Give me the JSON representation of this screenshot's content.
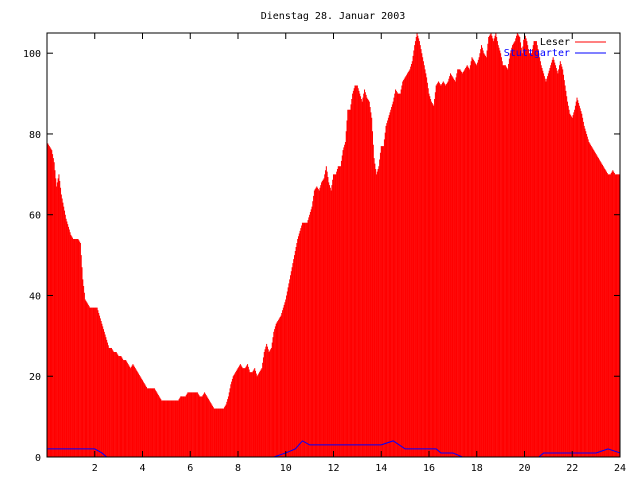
{
  "chart_data": {
    "type": "bar",
    "title": "Dienstag 28. Januar 2003",
    "xlabel": "",
    "ylabel": "",
    "xlim": [
      0,
      24
    ],
    "ylim": [
      0,
      105
    ],
    "x_ticks": [
      2,
      4,
      6,
      8,
      10,
      12,
      14,
      16,
      18,
      20,
      22,
      24
    ],
    "y_ticks": [
      0,
      20,
      40,
      60,
      80,
      100
    ],
    "legend_position": "top-right",
    "grid": false,
    "series": [
      {
        "name": "Leser",
        "style": "impulses",
        "color": "#ff0000",
        "points": [
          [
            0.0,
            78
          ],
          [
            0.1,
            77
          ],
          [
            0.2,
            76
          ],
          [
            0.3,
            73
          ],
          [
            0.4,
            67
          ],
          [
            0.5,
            70
          ],
          [
            0.6,
            65
          ],
          [
            0.7,
            62
          ],
          [
            0.8,
            59
          ],
          [
            0.9,
            57
          ],
          [
            1.0,
            55
          ],
          [
            1.1,
            54
          ],
          [
            1.2,
            54
          ],
          [
            1.3,
            54
          ],
          [
            1.4,
            53
          ],
          [
            1.5,
            44
          ],
          [
            1.6,
            39
          ],
          [
            1.7,
            38
          ],
          [
            1.8,
            37
          ],
          [
            1.9,
            37
          ],
          [
            2.0,
            37
          ],
          [
            2.1,
            37
          ],
          [
            2.2,
            35
          ],
          [
            2.3,
            33
          ],
          [
            2.4,
            31
          ],
          [
            2.5,
            29
          ],
          [
            2.6,
            27
          ],
          [
            2.7,
            27
          ],
          [
            2.8,
            26
          ],
          [
            2.9,
            26
          ],
          [
            3.0,
            25
          ],
          [
            3.1,
            25
          ],
          [
            3.2,
            24
          ],
          [
            3.3,
            24
          ],
          [
            3.4,
            23
          ],
          [
            3.5,
            22
          ],
          [
            3.6,
            23
          ],
          [
            3.7,
            22
          ],
          [
            3.8,
            21
          ],
          [
            3.9,
            20
          ],
          [
            4.0,
            19
          ],
          [
            4.1,
            18
          ],
          [
            4.2,
            17
          ],
          [
            4.3,
            17
          ],
          [
            4.4,
            17
          ],
          [
            4.5,
            17
          ],
          [
            4.6,
            16
          ],
          [
            4.7,
            15
          ],
          [
            4.8,
            14
          ],
          [
            4.9,
            14
          ],
          [
            5.0,
            14
          ],
          [
            5.1,
            14
          ],
          [
            5.2,
            14
          ],
          [
            5.3,
            14
          ],
          [
            5.4,
            14
          ],
          [
            5.5,
            14
          ],
          [
            5.6,
            15
          ],
          [
            5.7,
            15
          ],
          [
            5.8,
            15
          ],
          [
            5.9,
            16
          ],
          [
            6.0,
            16
          ],
          [
            6.1,
            16
          ],
          [
            6.2,
            16
          ],
          [
            6.3,
            16
          ],
          [
            6.4,
            15
          ],
          [
            6.5,
            15
          ],
          [
            6.6,
            16
          ],
          [
            6.7,
            15
          ],
          [
            6.8,
            14
          ],
          [
            6.9,
            13
          ],
          [
            7.0,
            12
          ],
          [
            7.1,
            12
          ],
          [
            7.2,
            12
          ],
          [
            7.3,
            12
          ],
          [
            7.4,
            12
          ],
          [
            7.5,
            13
          ],
          [
            7.6,
            15
          ],
          [
            7.7,
            18
          ],
          [
            7.8,
            20
          ],
          [
            7.9,
            21
          ],
          [
            8.0,
            22
          ],
          [
            8.1,
            23
          ],
          [
            8.2,
            22
          ],
          [
            8.3,
            22
          ],
          [
            8.4,
            23
          ],
          [
            8.5,
            21
          ],
          [
            8.6,
            21
          ],
          [
            8.7,
            22
          ],
          [
            8.8,
            20
          ],
          [
            8.9,
            21
          ],
          [
            9.0,
            22
          ],
          [
            9.1,
            26
          ],
          [
            9.2,
            28
          ],
          [
            9.3,
            26
          ],
          [
            9.4,
            27
          ],
          [
            9.5,
            31
          ],
          [
            9.6,
            33
          ],
          [
            9.7,
            34
          ],
          [
            9.8,
            35
          ],
          [
            9.9,
            37
          ],
          [
            10.0,
            39
          ],
          [
            10.1,
            42
          ],
          [
            10.2,
            45
          ],
          [
            10.3,
            48
          ],
          [
            10.4,
            51
          ],
          [
            10.5,
            54
          ],
          [
            10.6,
            56
          ],
          [
            10.7,
            58
          ],
          [
            10.8,
            58
          ],
          [
            10.9,
            58
          ],
          [
            11.0,
            60
          ],
          [
            11.1,
            62
          ],
          [
            11.2,
            66
          ],
          [
            11.3,
            67
          ],
          [
            11.4,
            66
          ],
          [
            11.5,
            68
          ],
          [
            11.6,
            69
          ],
          [
            11.7,
            72
          ],
          [
            11.8,
            68
          ],
          [
            11.9,
            66
          ],
          [
            12.0,
            70
          ],
          [
            12.1,
            70
          ],
          [
            12.2,
            72
          ],
          [
            12.3,
            72
          ],
          [
            12.4,
            76
          ],
          [
            12.5,
            78
          ],
          [
            12.6,
            86
          ],
          [
            12.7,
            86
          ],
          [
            12.8,
            90
          ],
          [
            12.9,
            92
          ],
          [
            13.0,
            92
          ],
          [
            13.1,
            90
          ],
          [
            13.2,
            88
          ],
          [
            13.3,
            91
          ],
          [
            13.4,
            89
          ],
          [
            13.5,
            88
          ],
          [
            13.6,
            84
          ],
          [
            13.7,
            74
          ],
          [
            13.8,
            70
          ],
          [
            13.9,
            72
          ],
          [
            14.0,
            77
          ],
          [
            14.1,
            77
          ],
          [
            14.2,
            82
          ],
          [
            14.3,
            84
          ],
          [
            14.4,
            86
          ],
          [
            14.5,
            88
          ],
          [
            14.6,
            91
          ],
          [
            14.7,
            90
          ],
          [
            14.8,
            90
          ],
          [
            14.9,
            93
          ],
          [
            15.0,
            94
          ],
          [
            15.1,
            95
          ],
          [
            15.2,
            96
          ],
          [
            15.3,
            98
          ],
          [
            15.4,
            102
          ],
          [
            15.5,
            105
          ],
          [
            15.6,
            103
          ],
          [
            15.7,
            100
          ],
          [
            15.8,
            97
          ],
          [
            15.9,
            94
          ],
          [
            16.0,
            90
          ],
          [
            16.1,
            88
          ],
          [
            16.2,
            87
          ],
          [
            16.3,
            92
          ],
          [
            16.4,
            93
          ],
          [
            16.5,
            92
          ],
          [
            16.6,
            93
          ],
          [
            16.7,
            92
          ],
          [
            16.8,
            93
          ],
          [
            16.9,
            95
          ],
          [
            17.0,
            94
          ],
          [
            17.1,
            93
          ],
          [
            17.2,
            96
          ],
          [
            17.3,
            96
          ],
          [
            17.4,
            95
          ],
          [
            17.5,
            96
          ],
          [
            17.6,
            97
          ],
          [
            17.7,
            96
          ],
          [
            17.8,
            99
          ],
          [
            17.9,
            98
          ],
          [
            18.0,
            97
          ],
          [
            18.1,
            99
          ],
          [
            18.2,
            102
          ],
          [
            18.3,
            100
          ],
          [
            18.4,
            99
          ],
          [
            18.5,
            104
          ],
          [
            18.6,
            105
          ],
          [
            18.7,
            103
          ],
          [
            18.8,
            105
          ],
          [
            18.9,
            102
          ],
          [
            19.0,
            100
          ],
          [
            19.1,
            97
          ],
          [
            19.2,
            97
          ],
          [
            19.3,
            96
          ],
          [
            19.4,
            100
          ],
          [
            19.5,
            102
          ],
          [
            19.6,
            103
          ],
          [
            19.7,
            105
          ],
          [
            19.8,
            104
          ],
          [
            19.9,
            100
          ],
          [
            20.0,
            105
          ],
          [
            20.1,
            103
          ],
          [
            20.2,
            100
          ],
          [
            20.3,
            100
          ],
          [
            20.4,
            103
          ],
          [
            20.5,
            103
          ],
          [
            20.6,
            100
          ],
          [
            20.7,
            97
          ],
          [
            20.8,
            95
          ],
          [
            20.9,
            93
          ],
          [
            21.0,
            95
          ],
          [
            21.1,
            97
          ],
          [
            21.2,
            99
          ],
          [
            21.3,
            97
          ],
          [
            21.4,
            95
          ],
          [
            21.5,
            98
          ],
          [
            21.6,
            96
          ],
          [
            21.7,
            92
          ],
          [
            21.8,
            88
          ],
          [
            21.9,
            85
          ],
          [
            22.0,
            84
          ],
          [
            22.1,
            86
          ],
          [
            22.2,
            89
          ],
          [
            22.3,
            87
          ],
          [
            22.4,
            85
          ],
          [
            22.5,
            82
          ],
          [
            22.6,
            80
          ],
          [
            22.7,
            78
          ],
          [
            22.8,
            77
          ],
          [
            22.9,
            76
          ],
          [
            23.0,
            75
          ],
          [
            23.1,
            74
          ],
          [
            23.2,
            73
          ],
          [
            23.3,
            72
          ],
          [
            23.4,
            71
          ],
          [
            23.5,
            70
          ],
          [
            23.6,
            70
          ],
          [
            23.7,
            71
          ],
          [
            23.8,
            70
          ],
          [
            23.9,
            70
          ]
        ]
      },
      {
        "name": "Stuttgarter",
        "style": "lines",
        "color": "#0000ff",
        "points": [
          [
            0.0,
            2
          ],
          [
            1.0,
            2
          ],
          [
            2.0,
            2
          ],
          [
            2.3,
            1
          ],
          [
            2.5,
            0
          ],
          [
            4.0,
            0
          ],
          [
            6.0,
            0
          ],
          [
            8.0,
            0
          ],
          [
            9.5,
            0
          ],
          [
            10.0,
            1
          ],
          [
            10.4,
            2
          ],
          [
            10.7,
            4
          ],
          [
            11.0,
            3
          ],
          [
            11.5,
            3
          ],
          [
            12.0,
            3
          ],
          [
            12.5,
            3
          ],
          [
            13.0,
            3
          ],
          [
            13.5,
            3
          ],
          [
            14.0,
            3
          ],
          [
            14.5,
            4
          ],
          [
            15.0,
            2
          ],
          [
            15.5,
            2
          ],
          [
            16.0,
            2
          ],
          [
            16.3,
            2
          ],
          [
            16.5,
            1
          ],
          [
            17.0,
            1
          ],
          [
            17.4,
            0
          ],
          [
            18.0,
            0
          ],
          [
            19.0,
            0
          ],
          [
            20.0,
            0
          ],
          [
            20.6,
            0
          ],
          [
            20.8,
            1
          ],
          [
            21.0,
            1
          ],
          [
            21.5,
            1
          ],
          [
            22.0,
            1
          ],
          [
            22.5,
            1
          ],
          [
            23.0,
            1
          ],
          [
            23.5,
            2
          ],
          [
            24.0,
            1
          ]
        ]
      }
    ]
  }
}
